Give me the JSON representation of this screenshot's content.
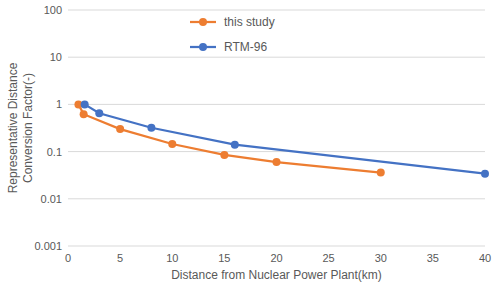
{
  "chart_data": {
    "type": "line",
    "log": "y",
    "grid": true,
    "legend": "top",
    "x_label": "Distance from Nuclear Power Plant(km)",
    "y_label": "Representative Distance Conversion Factor(-)",
    "xlim": [
      0,
      40
    ],
    "xticks": [
      0,
      5,
      10,
      15,
      20,
      25,
      30,
      35,
      40
    ],
    "ylim": [
      0.001,
      100
    ],
    "yticks": [
      0.001,
      0.01,
      0.1,
      1,
      10,
      100
    ],
    "series": [
      {
        "name": "this study",
        "color": "#ed7d31",
        "marker": "circle",
        "line_style": "solid",
        "x": [
          1,
          1.5,
          5,
          10,
          15,
          20,
          30
        ],
        "values": [
          1,
          0.62,
          0.3,
          0.145,
          0.085,
          0.06,
          0.036
        ]
      },
      {
        "name": "RTM-96",
        "color": "#4472c4",
        "marker": "circle",
        "line_style": "solid",
        "x": [
          1.6,
          3,
          8,
          16,
          40
        ],
        "values": [
          1,
          0.65,
          0.32,
          0.14,
          0.034
        ]
      }
    ]
  }
}
